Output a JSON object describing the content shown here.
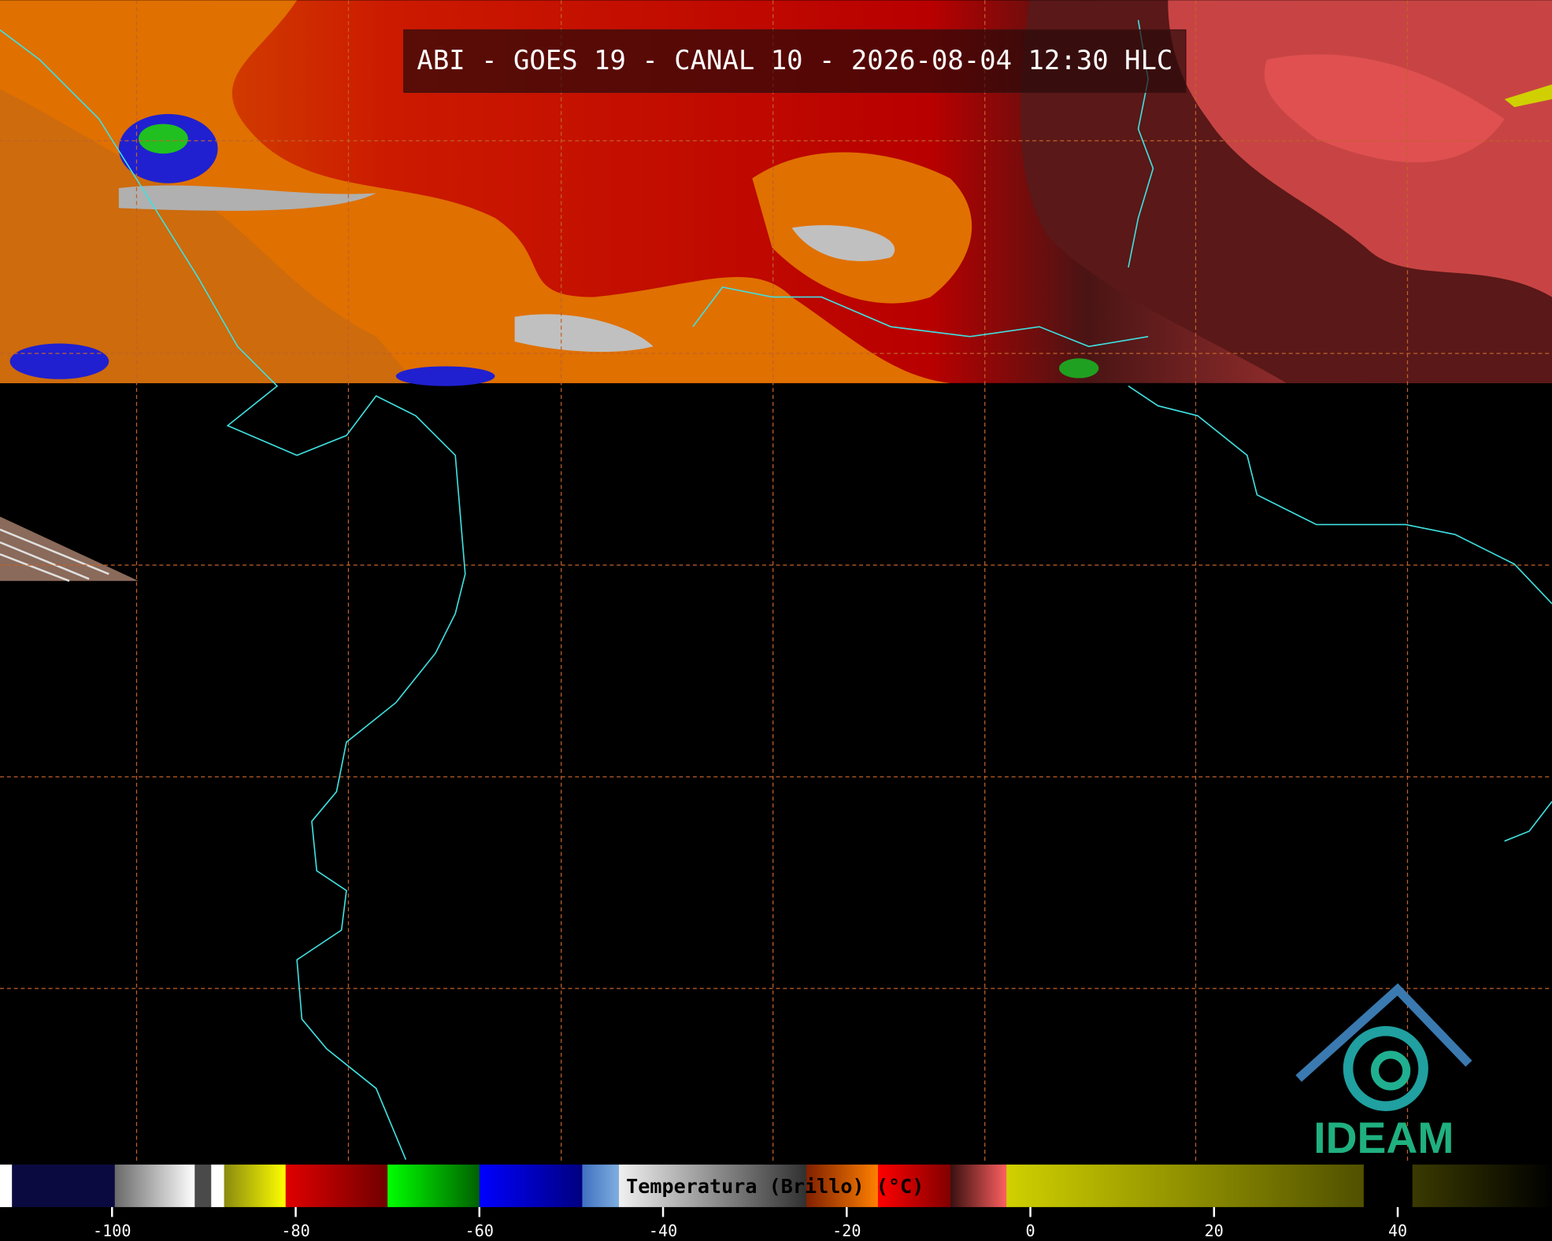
{
  "title": "ABI - GOES 19 - CANAL 10 - 2026-08-04 12:30 HLC",
  "logo": {
    "text": "IDEAM"
  },
  "colorbar": {
    "label": "Temperatura (Brillo) (°C)",
    "lim": [
      -112.2,
      56.8
    ],
    "ticks": [
      -100,
      -80,
      -60,
      -40,
      -20,
      0,
      20,
      40
    ],
    "segments": [
      {
        "from": -112.2,
        "to": -110.9,
        "colors": [
          "#ffffff",
          "#ffffff"
        ]
      },
      {
        "from": -110.9,
        "to": -99.7,
        "colors": [
          "#0a0a40",
          "#0a0a40"
        ]
      },
      {
        "from": -99.7,
        "to": -91,
        "colors": [
          "#6a6a6a",
          "#ffffff"
        ]
      },
      {
        "from": -91,
        "to": -89.2,
        "colors": [
          "#4a4a4a",
          "#4a4a4a"
        ]
      },
      {
        "from": -89.2,
        "to": -87.8,
        "colors": [
          "#ffffff",
          "#ffffff"
        ]
      },
      {
        "from": -87.8,
        "to": -81.1,
        "colors": [
          "#8a8a10",
          "#ffff00"
        ]
      },
      {
        "from": -81.1,
        "to": -70,
        "colors": [
          "#e00000",
          "#700000"
        ]
      },
      {
        "from": -70,
        "to": -60,
        "colors": [
          "#00ff00",
          "#006000"
        ]
      },
      {
        "from": -60,
        "to": -48.8,
        "colors": [
          "#0000ff",
          "#000080"
        ]
      },
      {
        "from": -48.8,
        "to": -44.8,
        "colors": [
          "#4070c0",
          "#80b0e0"
        ]
      },
      {
        "from": -44.8,
        "to": -24.4,
        "colors": [
          "#f0f0f0",
          "#303030"
        ]
      },
      {
        "from": -24.4,
        "to": -16.6,
        "colors": [
          "#802000",
          "#ff8000"
        ]
      },
      {
        "from": -16.6,
        "to": -8.7,
        "colors": [
          "#ff0000",
          "#800000"
        ]
      },
      {
        "from": -8.7,
        "to": -2.6,
        "colors": [
          "#3a1010",
          "#ff6060"
        ]
      },
      {
        "from": -2.6,
        "to": 36.3,
        "colors": [
          "#d0d000",
          "#505000"
        ]
      },
      {
        "from": 36.3,
        "to": 41.6,
        "colors": [
          "#000000",
          "#000000"
        ]
      },
      {
        "from": 41.6,
        "to": 56.8,
        "colors": [
          "#3a3a00",
          "#000000"
        ]
      }
    ]
  }
}
